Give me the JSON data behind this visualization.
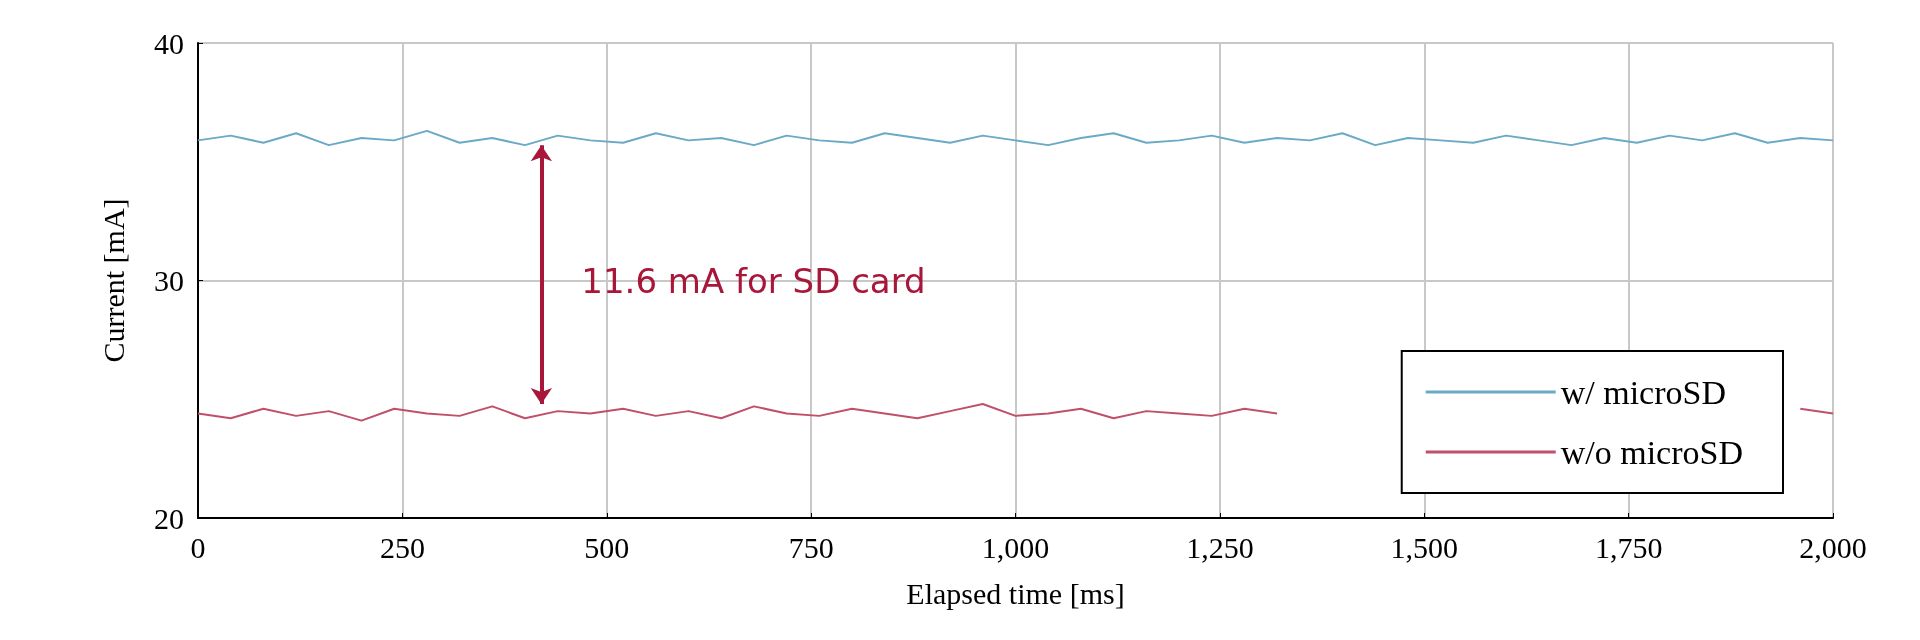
{
  "chart_data": {
    "type": "line",
    "xlabel": "Elapsed time [ms]",
    "ylabel": "Current [mA]",
    "x": [
      0,
      40,
      80,
      120,
      160,
      200,
      240,
      280,
      320,
      360,
      400,
      440,
      480,
      520,
      560,
      600,
      640,
      680,
      720,
      760,
      800,
      840,
      880,
      920,
      960,
      1000,
      1040,
      1080,
      1120,
      1160,
      1200,
      1240,
      1280,
      1320,
      1360,
      1400,
      1440,
      1480,
      1520,
      1560,
      1600,
      1640,
      1680,
      1720,
      1760,
      1800,
      1840,
      1880,
      1920,
      1960,
      2000
    ],
    "series": [
      {
        "name": "w/ microSD",
        "color": "#6aaac6",
        "values": [
          35.9,
          36.1,
          35.8,
          36.2,
          35.7,
          36.0,
          35.9,
          36.3,
          35.8,
          36.0,
          35.7,
          36.1,
          35.9,
          35.8,
          36.2,
          35.9,
          36.0,
          35.7,
          36.1,
          35.9,
          35.8,
          36.2,
          36.0,
          35.8,
          36.1,
          35.9,
          35.7,
          36.0,
          36.2,
          35.8,
          35.9,
          36.1,
          35.8,
          36.0,
          35.9,
          36.2,
          35.7,
          36.0,
          35.9,
          35.8,
          36.1,
          35.9,
          35.7,
          36.0,
          35.8,
          36.1,
          35.9,
          36.2,
          35.8,
          36.0,
          35.9
        ]
      },
      {
        "name": "w/o microSD",
        "color": "#c0506a",
        "values": [
          24.4,
          24.2,
          24.6,
          24.3,
          24.5,
          24.1,
          24.6,
          24.4,
          24.3,
          24.7,
          24.2,
          24.5,
          24.4,
          24.6,
          24.3,
          24.5,
          24.2,
          24.7,
          24.4,
          24.3,
          24.6,
          24.4,
          24.2,
          24.5,
          24.8,
          24.3,
          24.4,
          24.6,
          24.2,
          24.5,
          24.4,
          24.3,
          24.6,
          24.4,
          null,
          null,
          null,
          null,
          null,
          null,
          null,
          null,
          null,
          null,
          null,
          null,
          null,
          null,
          null,
          24.6,
          24.4
        ]
      }
    ],
    "xlim": [
      0,
      2000
    ],
    "xticks": [
      0,
      250,
      500,
      750,
      {
        "value": 1000,
        "label": "1,000"
      },
      {
        "value": 1250,
        "label": "1,250"
      },
      {
        "value": 1500,
        "label": "1,500"
      },
      {
        "value": 1750,
        "label": "1,750"
      },
      {
        "value": 2000,
        "label": "2,000"
      }
    ],
    "ylim": [
      20,
      40
    ],
    "yticks": [
      20,
      30,
      40
    ],
    "annotations": [
      "11.6 mA for SD card"
    ],
    "grid": true,
    "legend": "bottom right",
    "marker": "none",
    "line_style": "solid"
  }
}
